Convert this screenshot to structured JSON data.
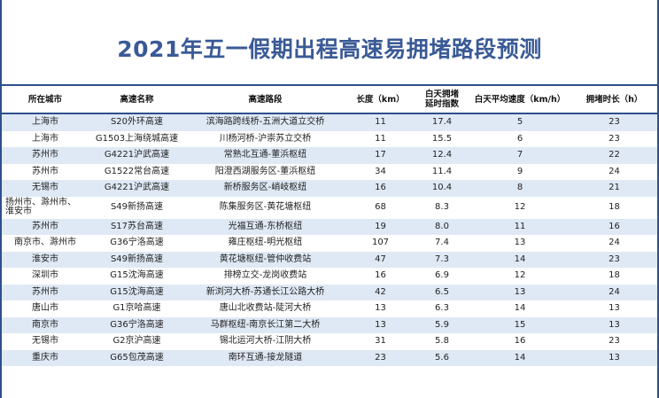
{
  "title": "2021年五一假期出程高速易拥堵路段预测",
  "table": {
    "headers": [
      "所在城市",
      "高速名称",
      "高速路段",
      "长度（km）",
      "白天拥堵\n延时指数",
      "白天平均速度（km/h）",
      "拥堵时长（h）"
    ],
    "rows": [
      [
        "上海市",
        "S20外环高速",
        "滨海路跨线桥-五洲大道立交桥",
        "11",
        "17.4",
        "5",
        "23"
      ],
      [
        "上海市",
        "G1503上海绕城高速",
        "川杨河桥-沪崇苏立交桥",
        "11",
        "15.5",
        "6",
        "23"
      ],
      [
        "苏州市",
        "G4221沪武高速",
        "常熟北互通-董浜枢纽",
        "17",
        "12.4",
        "7",
        "22"
      ],
      [
        "苏州市",
        "G1522常台高速",
        "阳澄西湖服务区-董浜枢纽",
        "34",
        "11.4",
        "9",
        "24"
      ],
      [
        "无锡市",
        "G4221沪武高速",
        "新桥服务区-峭岐枢纽",
        "16",
        "10.4",
        "8",
        "21"
      ],
      [
        "扬州市、滁州市、\n淮安市",
        "S49新扬高速",
        "陈集服务区-黄花塘枢纽",
        "68",
        "8.3",
        "12",
        "18"
      ],
      [
        "苏州市",
        "S17苏台高速",
        "光福互通-东桥枢纽",
        "19",
        "8.0",
        "11",
        "16"
      ],
      [
        "南京市、滁州市",
        "G36宁洛高速",
        "雍庄枢纽-明光枢纽",
        "107",
        "7.4",
        "13",
        "24"
      ],
      [
        "淮安市",
        "S49新扬高速",
        "黄花塘枢纽-管仲收费站",
        "47",
        "7.3",
        "14",
        "23"
      ],
      [
        "深圳市",
        "G15沈海高速",
        "排榜立交-龙岗收费站",
        "16",
        "6.9",
        "12",
        "18"
      ],
      [
        "苏州市",
        "G15沈海高速",
        "新浏河大桥-苏通长江公路大桥",
        "42",
        "6.5",
        "13",
        "24"
      ],
      [
        "唐山市",
        "G1京哈高速",
        "唐山北收费站-陡河大桥",
        "13",
        "6.3",
        "14",
        "13"
      ],
      [
        "南京市",
        "G36宁洛高速",
        "马群枢纽-南京长江第二大桥",
        "13",
        "5.9",
        "15",
        "13"
      ],
      [
        "无锡市",
        "G2京沪高速",
        "锡北运河大桥-江阴大桥",
        "31",
        "5.8",
        "16",
        "23"
      ],
      [
        "重庆市",
        "G65包茂高速",
        "南环互通-接龙隧道",
        "23",
        "5.6",
        "14",
        "13"
      ]
    ]
  }
}
